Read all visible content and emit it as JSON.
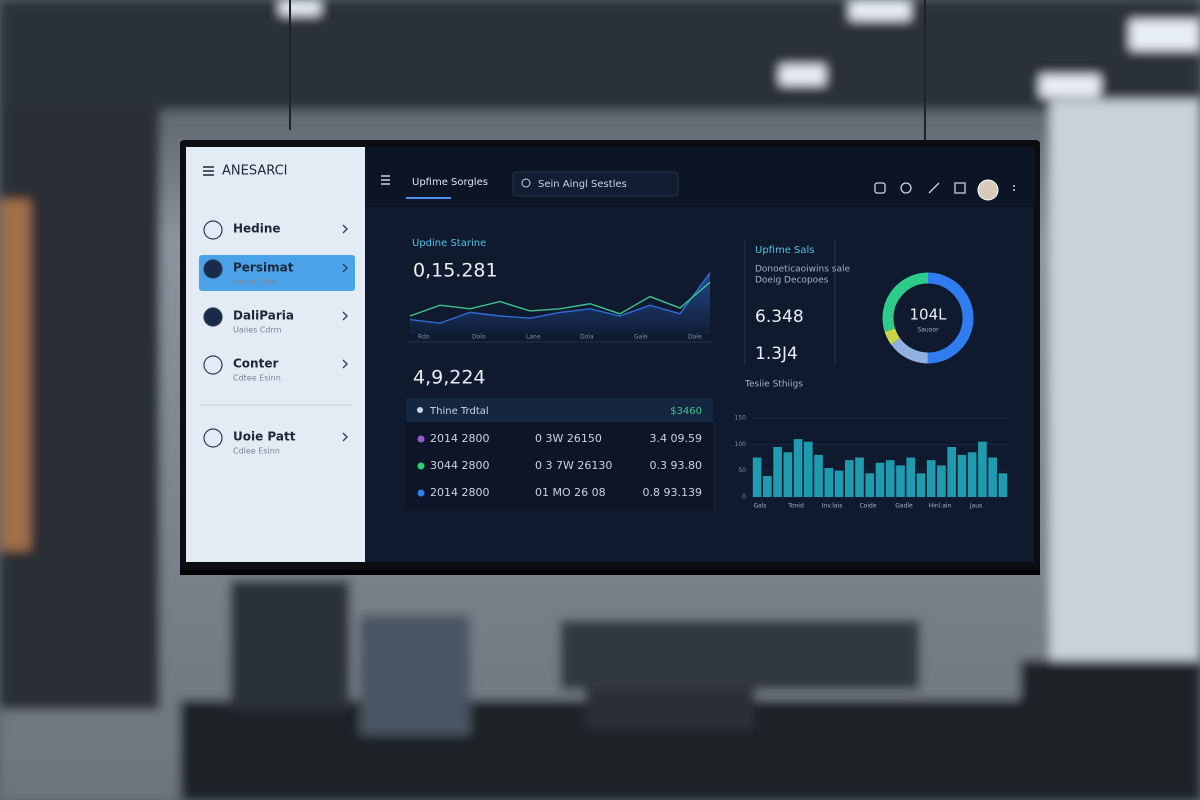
{
  "sidebar": {
    "title": "ANESARCI",
    "items": [
      {
        "label": "Hedine"
      },
      {
        "label": "Persimat",
        "sub": "Onleo Cdin"
      },
      {
        "label": "DaliParia",
        "sub": "Uaiies Cdrm"
      },
      {
        "label": "Conter",
        "sub": "Cdtee Esinn"
      },
      {
        "label": "Uoie Patt",
        "sub": "Cdlee Esinn"
      }
    ]
  },
  "topbar": {
    "tab": "Upfime Sorgles",
    "search": "Sein Aingl Sestles"
  },
  "line_panel": {
    "title": "Updine Starine",
    "value": "0,15.281",
    "x_labels": [
      "Rdo",
      "Dolo",
      "Lane",
      "Dola",
      "Gale",
      "Dale"
    ],
    "series": [
      {
        "color": "#2f6bd8",
        "values": [
          20,
          15,
          30,
          25,
          22,
          30,
          35,
          25,
          40,
          28,
          85
        ]
      },
      {
        "color": "#3cc48a",
        "values": [
          25,
          40,
          35,
          45,
          32,
          35,
          42,
          28,
          52,
          36,
          72
        ]
      }
    ]
  },
  "table_panel": {
    "value": "4,9,224",
    "header": [
      "Thine Trdtal",
      "$3460"
    ],
    "rows": [
      {
        "color": "#9b59d0",
        "cells": [
          "2014 2800",
          "0 3W 26150",
          "3.4 09.59"
        ]
      },
      {
        "color": "#2ecc71",
        "cells": [
          "3044 2800",
          "0 3 7W 26130",
          "0.3 93.80"
        ]
      },
      {
        "color": "#2f7df0",
        "cells": [
          "2014 2800",
          "01 MO 26 08",
          "0.8 93.139"
        ]
      }
    ]
  },
  "sales_panel": {
    "title": "Upfime Sals",
    "lines": [
      "Donoeticaoiwins sale",
      "Doeig Decopoes"
    ],
    "metrics": [
      "6.348",
      "1.3J4"
    ],
    "donut_center": "104L",
    "donut_sub": "Sauoor",
    "donut": [
      {
        "color": "#2f7df0",
        "value": 50
      },
      {
        "color": "#8fb0e0",
        "value": 15
      },
      {
        "color": "#c9d64a",
        "value": 5
      },
      {
        "color": "#2ecc8a",
        "value": 30
      }
    ]
  },
  "bar_panel": {
    "title": "Tesiie Sthiigs",
    "color": "#1f9bb0",
    "ylim": [
      0,
      150
    ],
    "yticks": [
      0,
      50,
      100,
      150
    ],
    "x_labels": [
      "Gals",
      "Tonid",
      "Inv.lais",
      "Coide",
      "Gadle",
      "Hinl.ain",
      "Jaus"
    ],
    "values": [
      75,
      40,
      95,
      85,
      110,
      105,
      80,
      55,
      50,
      70,
      75,
      45,
      65,
      70,
      60,
      75,
      45,
      70,
      60,
      95,
      80,
      85,
      105,
      75,
      45
    ]
  }
}
